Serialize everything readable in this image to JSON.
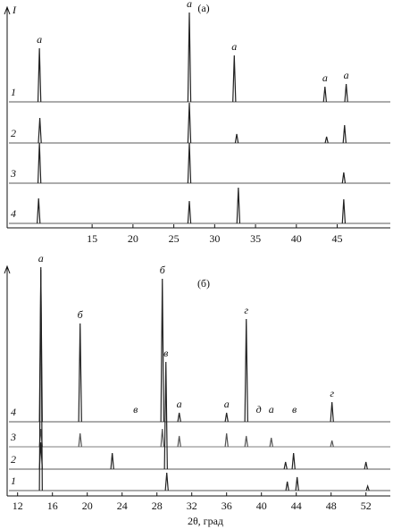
{
  "chart_data": [
    {
      "type": "xrd",
      "title": "(а)",
      "y_label": "I",
      "xlim": [
        4.6,
        51.5
      ],
      "xticks": [
        15,
        20,
        25,
        30,
        35,
        40,
        45
      ],
      "series": [
        {
          "name": "1",
          "color": "#222222",
          "x": [
            8.55,
            26.9,
            32.4,
            43.5,
            46.1
          ],
          "values": [
            60,
            100,
            52,
            17,
            20
          ]
        },
        {
          "name": "2",
          "color": "#222222",
          "x": [
            8.6,
            26.9,
            32.7,
            43.7,
            45.9
          ],
          "values": [
            28,
            45,
            10,
            7,
            20
          ]
        },
        {
          "name": "3",
          "color": "#222222",
          "x": [
            8.55,
            26.9,
            45.8
          ],
          "values": [
            45,
            45,
            12
          ]
        },
        {
          "name": "4",
          "color": "#222222",
          "x": [
            8.45,
            26.9,
            32.9,
            45.8
          ],
          "values": [
            28,
            25,
            40,
            27
          ]
        }
      ],
      "annotations": [
        {
          "text": "a",
          "x": 8.55
        },
        {
          "text": "a",
          "x": 26.9
        },
        {
          "text": "a",
          "x": 32.4
        },
        {
          "text": "a",
          "x": 43.5
        },
        {
          "text": "a",
          "x": 46.1
        }
      ]
    },
    {
      "type": "xrd",
      "title": "(б)",
      "x_label": "2θ, град",
      "xlim": [
        10.8,
        54.8
      ],
      "xticks": [
        12,
        16,
        20,
        24,
        28,
        32,
        36,
        40,
        44,
        48,
        52
      ],
      "series": [
        {
          "name": "4",
          "color": "#222222",
          "x": [
            14.67,
            19.18,
            28.62,
            30.56,
            36.0,
            38.26,
            48.1
          ],
          "values": [
            170,
            110,
            160,
            10,
            10,
            115,
            22
          ]
        },
        {
          "name": "3",
          "color": "#555555",
          "x": [
            14.67,
            19.18,
            28.62,
            30.56,
            36.0,
            38.26,
            41.13,
            48.1
          ],
          "values": [
            20,
            15,
            20,
            12,
            15,
            12,
            10,
            7
          ]
        },
        {
          "name": "2",
          "color": "#222222",
          "x": [
            14.67,
            22.87,
            29.03,
            42.77,
            43.69,
            52.0
          ],
          "values": [
            30,
            18,
            120,
            8,
            18,
            8
          ]
        },
        {
          "name": "1",
          "color": "#222222",
          "x": [
            14.67,
            29.13,
            42.97,
            44.1,
            52.2
          ],
          "values": [
            250,
            20,
            10,
            15,
            5
          ]
        }
      ],
      "annotations": [
        {
          "text": "а",
          "x": 14.67
        },
        {
          "text": "б",
          "x": 19.18
        },
        {
          "text": "б",
          "x": 28.62
        },
        {
          "text": "в",
          "x": 29.03
        },
        {
          "text": "в",
          "x": 25.54
        },
        {
          "text": "а",
          "x": 30.56
        },
        {
          "text": "а",
          "x": 36.0
        },
        {
          "text": "г",
          "x": 38.26
        },
        {
          "text": "д",
          "x": 39.69
        },
        {
          "text": "а",
          "x": 41.13
        },
        {
          "text": "в",
          "x": 43.79
        },
        {
          "text": "г",
          "x": 48.1
        }
      ]
    }
  ]
}
